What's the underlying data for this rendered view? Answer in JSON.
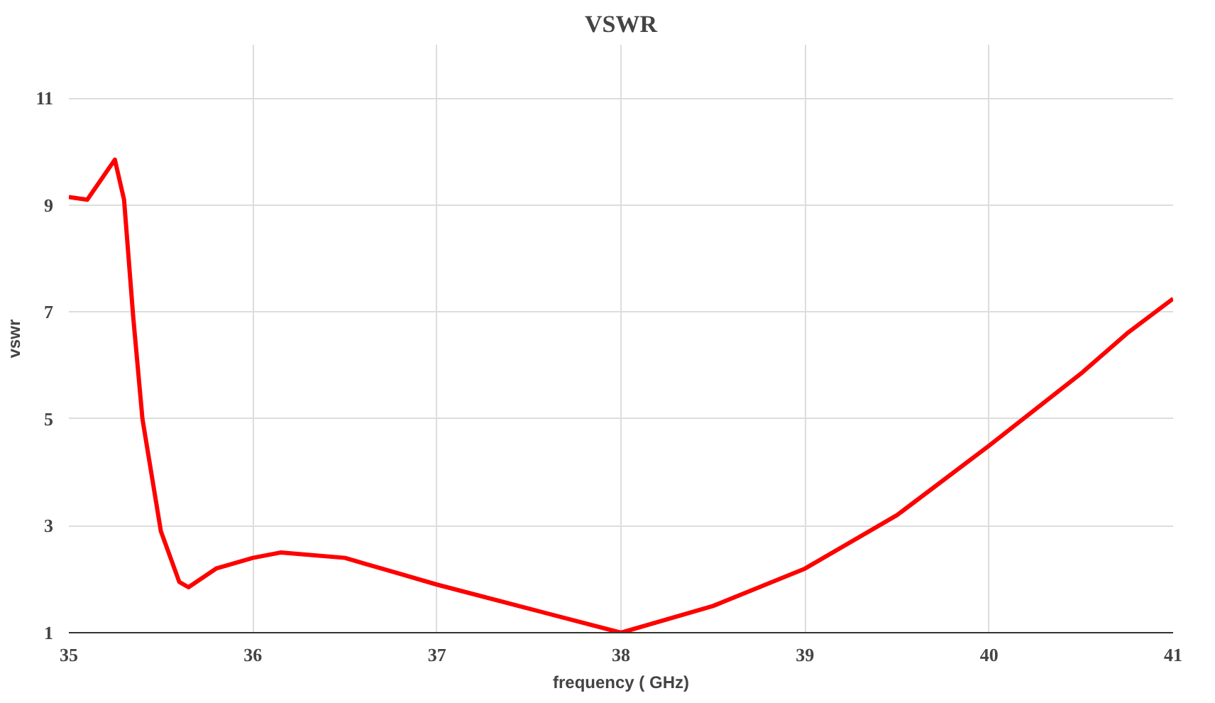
{
  "chart_data": {
    "type": "line",
    "title": "VSWR",
    "xlabel": "frequency ( GHz)",
    "ylabel": "vswr",
    "x": [
      35.0,
      35.1,
      35.2,
      35.25,
      35.3,
      35.35,
      35.4,
      35.5,
      35.6,
      35.65,
      35.8,
      36.0,
      36.15,
      36.5,
      36.75,
      37.0,
      37.5,
      38.0,
      38.5,
      39.0,
      39.5,
      40.0,
      40.5,
      40.75,
      41.0
    ],
    "series": [
      {
        "color": "#ff0000",
        "values": [
          9.15,
          9.1,
          9.6,
          9.85,
          9.1,
          6.9,
          5.0,
          2.9,
          1.95,
          1.85,
          2.2,
          2.4,
          2.5,
          2.4,
          2.15,
          1.9,
          1.45,
          1.0,
          1.5,
          2.2,
          3.2,
          4.5,
          5.85,
          6.6,
          7.25
        ]
      }
    ],
    "xlim": [
      35,
      41
    ],
    "xticks": [
      35,
      36,
      37,
      38,
      39,
      40,
      41
    ],
    "ylim": [
      1,
      12
    ],
    "yticks": [
      1,
      3,
      5,
      7,
      9,
      11
    ],
    "grid": true,
    "marker": "none",
    "line_style": "solid"
  }
}
